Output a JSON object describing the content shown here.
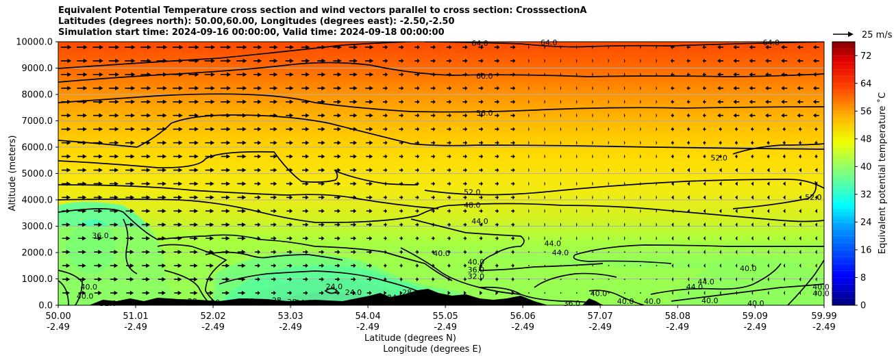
{
  "chart_data": {
    "type": "heatmap",
    "title_lines": [
      "Equivalent Potential Temperature cross section and wind vectors parallel to cross section: CrosssectionA",
      "Latitudes (degrees north): 50.00,60.00, Longitudes (degrees east): -2.50,-2.50",
      "Simulation start time: 2024-09-16 00:00:00, Valid time: 2024-09-18 00:00:00"
    ],
    "xlabel_line1": "Latitude (degrees N)",
    "xlabel_line2": "Longitude (degrees E)",
    "ylabel": "Altitude (meters)",
    "colorbar_label": "Equivalent potential temperature ˚C",
    "quiver_key_label": "25 m/s",
    "x_ticks": [
      {
        "lat": "50.00",
        "lon": "-2.49"
      },
      {
        "lat": "51.01",
        "lon": "-2.49"
      },
      {
        "lat": "52.02",
        "lon": "-2.49"
      },
      {
        "lat": "53.03",
        "lon": "-2.49"
      },
      {
        "lat": "54.04",
        "lon": "-2.49"
      },
      {
        "lat": "55.05",
        "lon": "-2.49"
      },
      {
        "lat": "56.06",
        "lon": "-2.49"
      },
      {
        "lat": "57.07",
        "lon": "-2.49"
      },
      {
        "lat": "58.08",
        "lon": "-2.49"
      },
      {
        "lat": "59.09",
        "lon": "-2.49"
      },
      {
        "lat": "59.99",
        "lon": "-2.49"
      }
    ],
    "y_ticks": [
      "0.0",
      "1000.0",
      "2000.0",
      "3000.0",
      "4000.0",
      "5000.0",
      "6000.0",
      "7000.0",
      "8000.0",
      "9000.0",
      "10000.0"
    ],
    "y_range": [
      0,
      10000
    ],
    "colorbar_ticks": [
      "0",
      "8",
      "16",
      "24",
      "32",
      "40",
      "48",
      "56",
      "64",
      "72"
    ],
    "colorbar_range": [
      0,
      76
    ],
    "grid": "horizontal",
    "contour_labels": [
      {
        "text": "64.0",
        "lat": 55.5,
        "z": 9950
      },
      {
        "text": "64.0",
        "lat": 56.4,
        "z": 9980
      },
      {
        "text": "64.0",
        "lat": 59.3,
        "z": 9980
      },
      {
        "text": "60.0",
        "lat": 55.56,
        "z": 8700
      },
      {
        "text": "56.0",
        "lat": 55.56,
        "z": 7300
      },
      {
        "text": "52.0",
        "lat": 55.4,
        "z": 4300
      },
      {
        "text": "48.0",
        "lat": 55.4,
        "z": 3800
      },
      {
        "text": "44.0",
        "lat": 55.5,
        "z": 3200
      },
      {
        "text": "52.0",
        "lat": 58.62,
        "z": 5600
      },
      {
        "text": "52.0",
        "lat": 59.85,
        "z": 4100
      },
      {
        "text": "40.0",
        "lat": 55.0,
        "z": 1980
      },
      {
        "text": "40.0",
        "lat": 55.45,
        "z": 1650
      },
      {
        "text": "36.0",
        "lat": 55.45,
        "z": 1350
      },
      {
        "text": "32.0",
        "lat": 55.45,
        "z": 1100
      },
      {
        "text": "44.0",
        "lat": 56.45,
        "z": 2350
      },
      {
        "text": "44.0",
        "lat": 56.55,
        "z": 2000
      },
      {
        "text": "40.0",
        "lat": 59.0,
        "z": 1400
      },
      {
        "text": "44.0",
        "lat": 58.45,
        "z": 900
      },
      {
        "text": "44.0",
        "lat": 58.3,
        "z": 700
      },
      {
        "text": "40.0",
        "lat": 58.5,
        "z": 180
      },
      {
        "text": "40.0",
        "lat": 59.1,
        "z": 80
      },
      {
        "text": "40.0",
        "lat": 59.95,
        "z": 450
      },
      {
        "text": "40.0",
        "lat": 59.95,
        "z": 700
      },
      {
        "text": "36.0",
        "lat": 50.55,
        "z": 2650
      },
      {
        "text": "40.0",
        "lat": 50.4,
        "z": 700
      },
      {
        "text": "40.0",
        "lat": 50.35,
        "z": 350
      },
      {
        "text": "32.0",
        "lat": 50.65,
        "z": 80
      },
      {
        "text": "28",
        "lat": 51.75,
        "z": 150
      },
      {
        "text": "28",
        "lat": 52.05,
        "z": 100
      },
      {
        "text": "28",
        "lat": 52.5,
        "z": 150
      },
      {
        "text": "28",
        "lat": 52.85,
        "z": 200
      },
      {
        "text": "28",
        "lat": 53.05,
        "z": 130
      },
      {
        "text": "24.0",
        "lat": 53.2,
        "z": 100
      },
      {
        "text": "24.0",
        "lat": 53.6,
        "z": 720
      },
      {
        "text": "24.0",
        "lat": 53.85,
        "z": 500
      },
      {
        "text": "24.0",
        "lat": 54.4,
        "z": 300
      },
      {
        "text": "28",
        "lat": 54.55,
        "z": 500
      },
      {
        "text": "36.0",
        "lat": 56.7,
        "z": 80
      },
      {
        "text": "40.0",
        "lat": 57.05,
        "z": 450
      },
      {
        "text": "40.0",
        "lat": 57.4,
        "z": 150
      },
      {
        "text": "40.0",
        "lat": 57.75,
        "z": 150
      }
    ]
  }
}
